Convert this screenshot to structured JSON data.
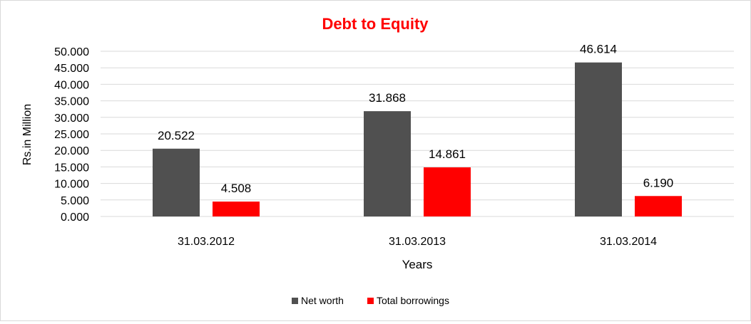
{
  "chart_data": {
    "type": "bar",
    "title": "Debt to Equity",
    "xlabel": "Years",
    "ylabel": "Rs.in Million",
    "categories": [
      "31.03.2012",
      "31.03.2013",
      "31.03.2014"
    ],
    "series": [
      {
        "name": "Net worth",
        "values": [
          20.522,
          31.868,
          46.614
        ],
        "labels": [
          "20.522",
          "31.868",
          "46.614"
        ],
        "color": "#505050"
      },
      {
        "name": "Total borrowings",
        "values": [
          4.508,
          14.861,
          6.19
        ],
        "labels": [
          "4.508",
          "14.861",
          "6.190"
        ],
        "color": "#ff0000"
      }
    ],
    "ylim": [
      0,
      50
    ],
    "yticks": [
      "0.000",
      "5.000",
      "10.000",
      "15.000",
      "20.000",
      "25.000",
      "30.000",
      "35.000",
      "40.000",
      "45.000",
      "50.000"
    ],
    "grid": true,
    "legend_position": "bottom",
    "title_color": "#ff0000",
    "grid_color": "#d9d9d9"
  }
}
